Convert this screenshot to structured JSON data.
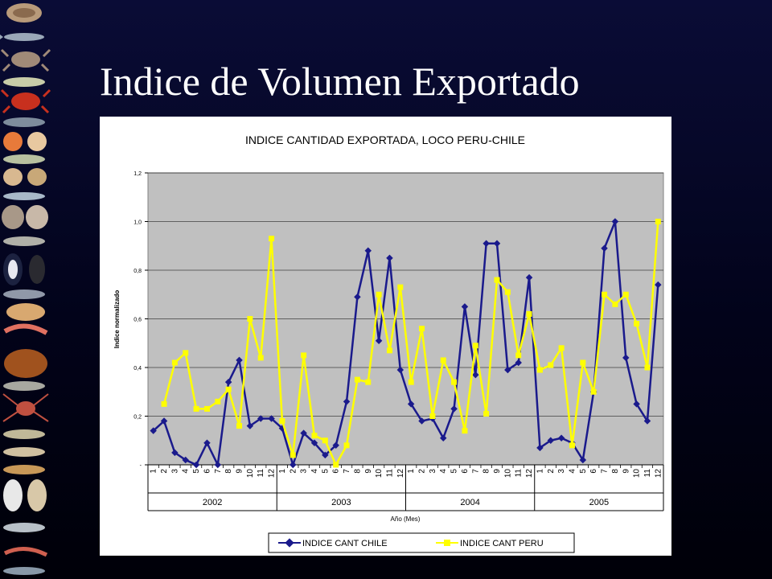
{
  "slide": {
    "title": "Indice de Volumen Exportado"
  },
  "decorations": {
    "left_strip": "marine species illustrations (shells, fish, crabs, shrimp)"
  },
  "colors": {
    "background": "#050824",
    "plot_area": "#c0c0c0",
    "chile_series": "#1a1a8c",
    "peru_series": "#ffff00"
  },
  "chart_data": {
    "type": "line",
    "title": "INDICE CANTIDAD EXPORTADA, LOCO PERU-CHILE",
    "xlabel": "Año (Mes)",
    "ylabel": "Indice normalizado",
    "ylim": [
      0,
      1.2
    ],
    "yticks": [
      "-",
      "0,2",
      "0,4",
      "0,6",
      "0,8",
      "1,0",
      "1,2"
    ],
    "years": [
      "2002",
      "2003",
      "2004",
      "2005"
    ],
    "months": [
      "1",
      "2",
      "3",
      "4",
      "5",
      "6",
      "7",
      "8",
      "9",
      "10",
      "11",
      "12"
    ],
    "grid": true,
    "legend_position": "bottom",
    "series": [
      {
        "name": "INDICE CANT CHILE",
        "color": "#1a1a8c",
        "marker": "diamond",
        "values": [
          0.14,
          0.18,
          0.05,
          0.02,
          0.0,
          0.09,
          0.0,
          0.34,
          0.43,
          0.16,
          0.19,
          0.19,
          0.15,
          0.0,
          0.13,
          0.09,
          0.04,
          0.08,
          0.26,
          0.69,
          0.88,
          0.51,
          0.85,
          0.39,
          0.25,
          0.18,
          0.19,
          0.11,
          0.23,
          0.65,
          0.37,
          0.91,
          0.91,
          0.39,
          0.42,
          0.77,
          0.07,
          0.1,
          0.11,
          0.09,
          0.02,
          0.3,
          0.89,
          1.0,
          0.44,
          0.25,
          0.18,
          0.74
        ]
      },
      {
        "name": "INDICE CANT PERU",
        "color": "#ffff00",
        "marker": "square",
        "values": [
          null,
          0.25,
          0.42,
          0.46,
          0.23,
          0.23,
          0.26,
          0.31,
          0.16,
          0.6,
          0.44,
          0.93,
          0.18,
          0.04,
          0.45,
          0.12,
          0.1,
          0.0,
          0.08,
          0.35,
          0.34,
          0.7,
          0.47,
          0.73,
          0.34,
          0.56,
          0.2,
          0.43,
          0.34,
          0.14,
          0.49,
          0.21,
          0.76,
          0.71,
          0.45,
          0.62,
          0.39,
          0.41,
          0.48,
          0.08,
          0.42,
          0.3,
          0.7,
          0.66,
          0.7,
          0.58,
          0.4,
          1.0
        ]
      }
    ]
  }
}
